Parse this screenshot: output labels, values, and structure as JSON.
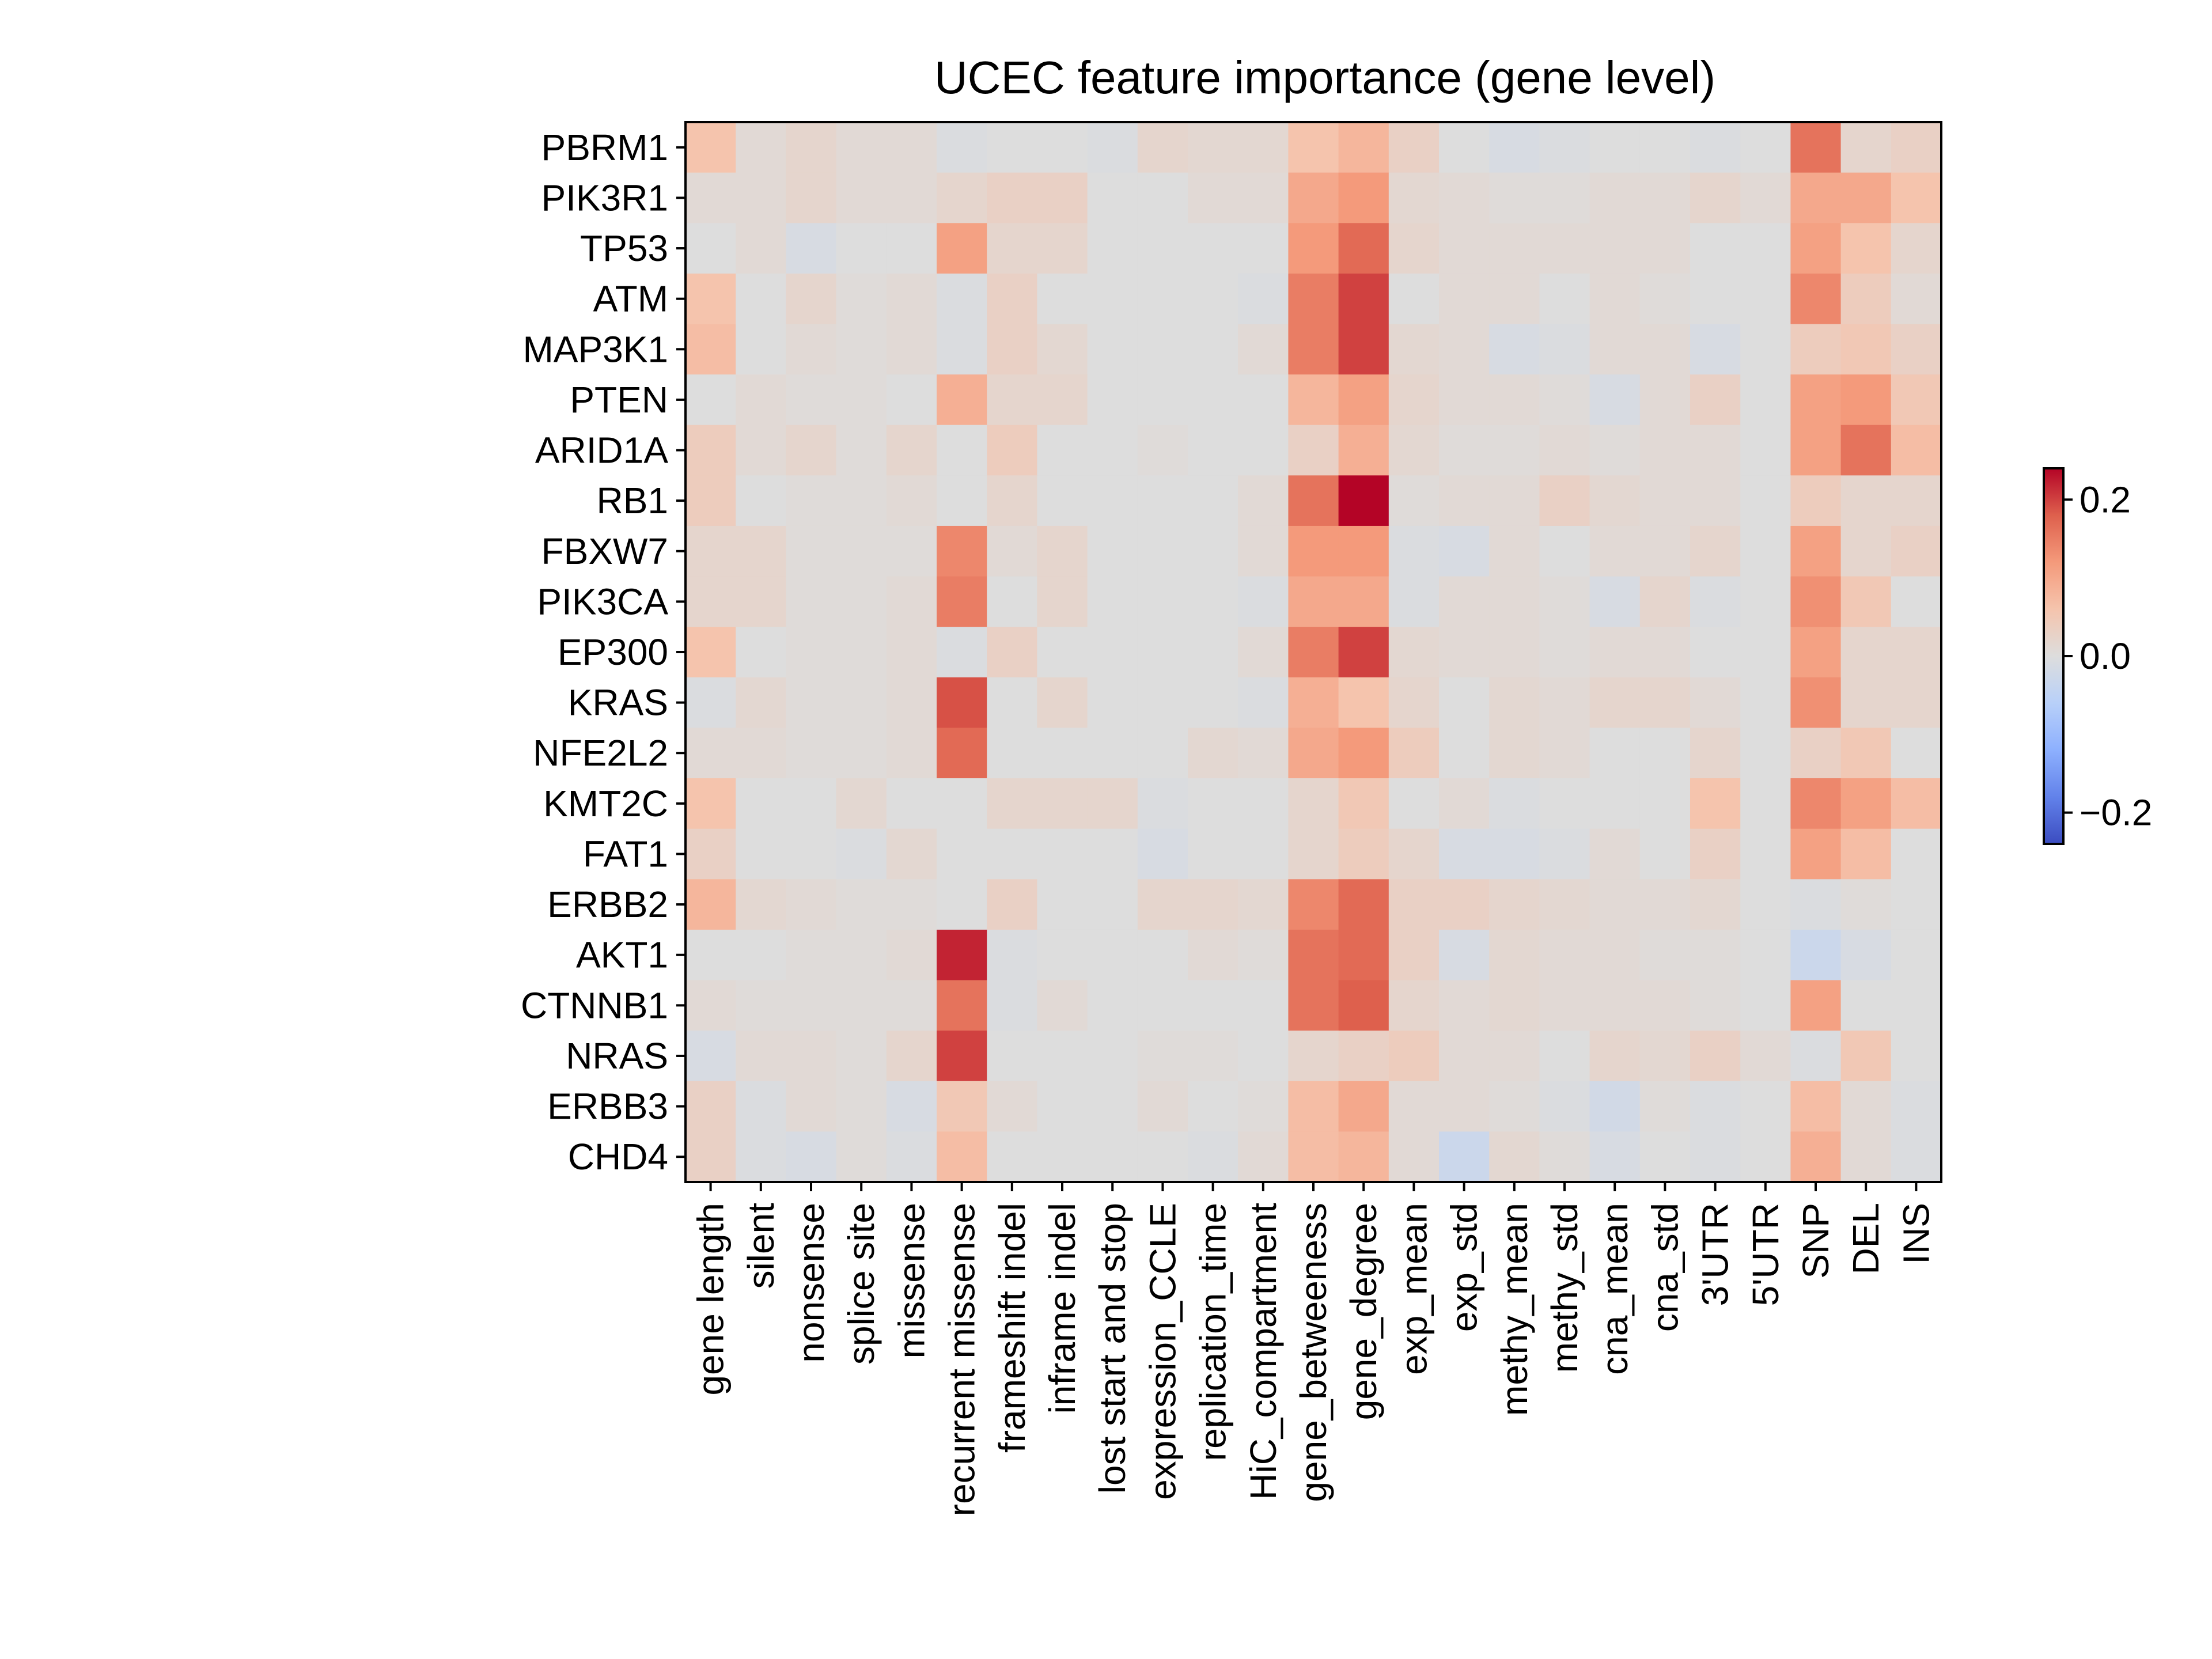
{
  "chart_data": {
    "type": "heatmap",
    "title": "UCEC feature importance (gene level)",
    "xlabel": "",
    "ylabel": "",
    "colormap": "coolwarm",
    "vmin": -0.24,
    "vmax": 0.24,
    "colorbar_ticks": [
      {
        "value": 0.2,
        "label": "0.2"
      },
      {
        "value": 0.0,
        "label": "0.0"
      },
      {
        "value": -0.2,
        "label": "−0.2"
      }
    ],
    "columns": [
      "gene length",
      "silent",
      "nonsense",
      "splice site",
      "missense",
      "recurrent missense",
      "frameshift indel",
      "inframe indel",
      "lost start and stop",
      "expression_CCLE",
      "replication_time",
      "HiC_compartment",
      "gene_betweeness",
      "gene_degree",
      "exp_mean",
      "exp_std",
      "methy_mean",
      "methy_std",
      "cna_mean",
      "cna_std",
      "3'UTR",
      "5'UTR",
      "SNP",
      "DEL",
      "INS"
    ],
    "rows": [
      "PBRM1",
      "PIK3R1",
      "TP53",
      "ATM",
      "MAP3K1",
      "PTEN",
      "ARID1A",
      "RB1",
      "FBXW7",
      "PIK3CA",
      "EP300",
      "KRAS",
      "NFE2L2",
      "KMT2C",
      "FAT1",
      "ERBB2",
      "AKT1",
      "CTNNB1",
      "NRAS",
      "ERBB3",
      "CHD4"
    ],
    "values": [
      [
        0.06,
        0.01,
        0.02,
        0.01,
        0.01,
        -0.005,
        0,
        0,
        -0.005,
        0.02,
        0.015,
        0.015,
        0.06,
        0.08,
        0.03,
        0,
        -0.01,
        -0.005,
        0,
        0,
        -0.005,
        0,
        0.16,
        0.02,
        0.03
      ],
      [
        0.01,
        0.01,
        0.02,
        0.01,
        0.01,
        0.02,
        0.03,
        0.03,
        0,
        0,
        0.01,
        0.01,
        0.1,
        0.12,
        0.015,
        0.01,
        0.005,
        0.005,
        0.01,
        0.01,
        0.02,
        0.01,
        0.1,
        0.1,
        0.06
      ],
      [
        0,
        0.01,
        -0.01,
        0,
        0,
        0.11,
        0.02,
        0.02,
        0,
        0,
        0,
        0,
        0.12,
        0.17,
        0.02,
        0.01,
        0.01,
        0.01,
        0.01,
        0.01,
        0,
        0,
        0.11,
        0.06,
        0.02
      ],
      [
        0.06,
        0,
        0.02,
        0.005,
        0.01,
        -0.005,
        0.03,
        0,
        0,
        0,
        0,
        -0.005,
        0.15,
        0.2,
        0,
        0.01,
        0.01,
        0,
        0.01,
        0.005,
        0,
        0,
        0.14,
        0.04,
        0.01
      ],
      [
        0.07,
        0,
        0.01,
        0.005,
        0.01,
        -0.005,
        0.03,
        0.015,
        0,
        0,
        0,
        0.01,
        0.15,
        0.2,
        0.015,
        0.01,
        -0.01,
        -0.005,
        0.01,
        0.01,
        -0.01,
        0,
        0.04,
        0.05,
        0.03
      ],
      [
        0,
        0.01,
        0.005,
        0.005,
        0,
        0.09,
        0.02,
        0.02,
        0,
        0,
        0,
        0,
        0.08,
        0.11,
        0.02,
        0.01,
        0.01,
        0.005,
        -0.01,
        0.01,
        0.03,
        0,
        0.11,
        0.12,
        0.05
      ],
      [
        0.04,
        0.01,
        0.02,
        0.005,
        0.02,
        0,
        0.04,
        0,
        0,
        0.005,
        0,
        0,
        0.03,
        0.09,
        0.015,
        0.005,
        0.005,
        0.01,
        0.005,
        0.01,
        0.01,
        0,
        0.11,
        0.16,
        0.07
      ],
      [
        0.04,
        0,
        0.005,
        0.005,
        0.01,
        0,
        0.02,
        0,
        0,
        0,
        0,
        0.01,
        0.16,
        0.24,
        0.005,
        0.01,
        0.01,
        0.03,
        0.015,
        0.01,
        0.01,
        0,
        0.04,
        0.02,
        0.02
      ],
      [
        0.02,
        0.02,
        0.005,
        0.005,
        0.005,
        0.14,
        0.01,
        0.02,
        0,
        0,
        0,
        0.01,
        0.12,
        0.12,
        -0.005,
        -0.01,
        0.01,
        0,
        0.01,
        0.01,
        0.02,
        0,
        0.11,
        0.02,
        0.03
      ],
      [
        0.02,
        0.02,
        0.005,
        0.005,
        0.01,
        0.15,
        0,
        0.02,
        0,
        0,
        0,
        -0.005,
        0.1,
        0.1,
        -0.005,
        0.01,
        0.01,
        0.005,
        -0.01,
        0.02,
        -0.005,
        0,
        0.13,
        0.05,
        0
      ],
      [
        0.06,
        0,
        0.005,
        0.005,
        0.01,
        -0.005,
        0.03,
        0,
        0,
        0,
        0,
        0.01,
        0.15,
        0.2,
        0.015,
        0.01,
        0.01,
        0.005,
        0.01,
        0.01,
        0,
        0,
        0.11,
        0.02,
        0.02
      ],
      [
        -0.005,
        0.015,
        0.005,
        0.005,
        0.01,
        0.19,
        0,
        0.02,
        0,
        0,
        0,
        -0.005,
        0.09,
        0.06,
        0.02,
        0,
        0.015,
        0.01,
        0.02,
        0.02,
        0.01,
        0,
        0.13,
        0.02,
        0.02
      ],
      [
        0.01,
        0.01,
        0.005,
        0.005,
        0.01,
        0.17,
        0,
        0,
        0,
        0,
        0.015,
        0.01,
        0.1,
        0.12,
        0.04,
        0,
        0.015,
        0.01,
        0,
        0,
        0.02,
        0,
        0.03,
        0.05,
        0
      ],
      [
        0.06,
        0,
        0,
        0.015,
        0,
        0,
        0.02,
        0.02,
        0.02,
        -0.005,
        0,
        0,
        0.02,
        0.05,
        0,
        0.01,
        -0.005,
        0,
        0,
        0,
        0.06,
        0,
        0.14,
        0.11,
        0.07
      ],
      [
        0.03,
        0,
        0,
        -0.005,
        0.015,
        0,
        0,
        0,
        0,
        -0.01,
        0,
        0,
        0.02,
        0.04,
        0.02,
        -0.01,
        -0.01,
        -0.005,
        0.01,
        0,
        0.03,
        0,
        0.11,
        0.07,
        0
      ],
      [
        0.08,
        0.015,
        0.01,
        0.005,
        0.005,
        0,
        0.03,
        0,
        0,
        0.02,
        0.02,
        0.015,
        0.14,
        0.17,
        0.03,
        0.03,
        0.02,
        0.015,
        0.01,
        0.01,
        0.015,
        0,
        -0.005,
        0.005,
        0
      ],
      [
        0,
        0,
        0.005,
        0.005,
        0.01,
        0.22,
        -0.005,
        0,
        0,
        0,
        0.01,
        0.005,
        0.16,
        0.17,
        0.03,
        -0.01,
        0.015,
        0.01,
        0.01,
        0.005,
        0.005,
        0,
        -0.03,
        -0.01,
        0
      ],
      [
        0.01,
        0.005,
        0.005,
        0.005,
        0.005,
        0.16,
        -0.005,
        0.01,
        0,
        0,
        0,
        0,
        0.16,
        0.18,
        0.02,
        0.01,
        0.015,
        0.01,
        0.01,
        0.01,
        0.005,
        0,
        0.11,
        0,
        0
      ],
      [
        -0.01,
        0.01,
        0.01,
        0.005,
        0.02,
        0.2,
        0,
        0,
        0,
        0.005,
        0.005,
        0,
        0.02,
        0.03,
        0.04,
        0.01,
        0.01,
        0,
        0.02,
        0.015,
        0.03,
        0.01,
        -0.005,
        0.05,
        0
      ],
      [
        0.03,
        -0.005,
        0.01,
        0.005,
        -0.01,
        0.05,
        0.01,
        0,
        0,
        0.01,
        0,
        0.005,
        0.07,
        0.1,
        0.01,
        0.01,
        0.005,
        -0.005,
        -0.02,
        0.005,
        -0.005,
        0,
        0.07,
        0.01,
        -0.005
      ],
      [
        0.03,
        -0.005,
        -0.01,
        0.005,
        -0.005,
        0.07,
        0,
        0,
        0,
        0,
        -0.005,
        0.01,
        0.07,
        0.08,
        0.01,
        -0.03,
        0.015,
        0.005,
        -0.01,
        0,
        -0.005,
        0,
        0.09,
        0.01,
        -0.005
      ]
    ]
  }
}
